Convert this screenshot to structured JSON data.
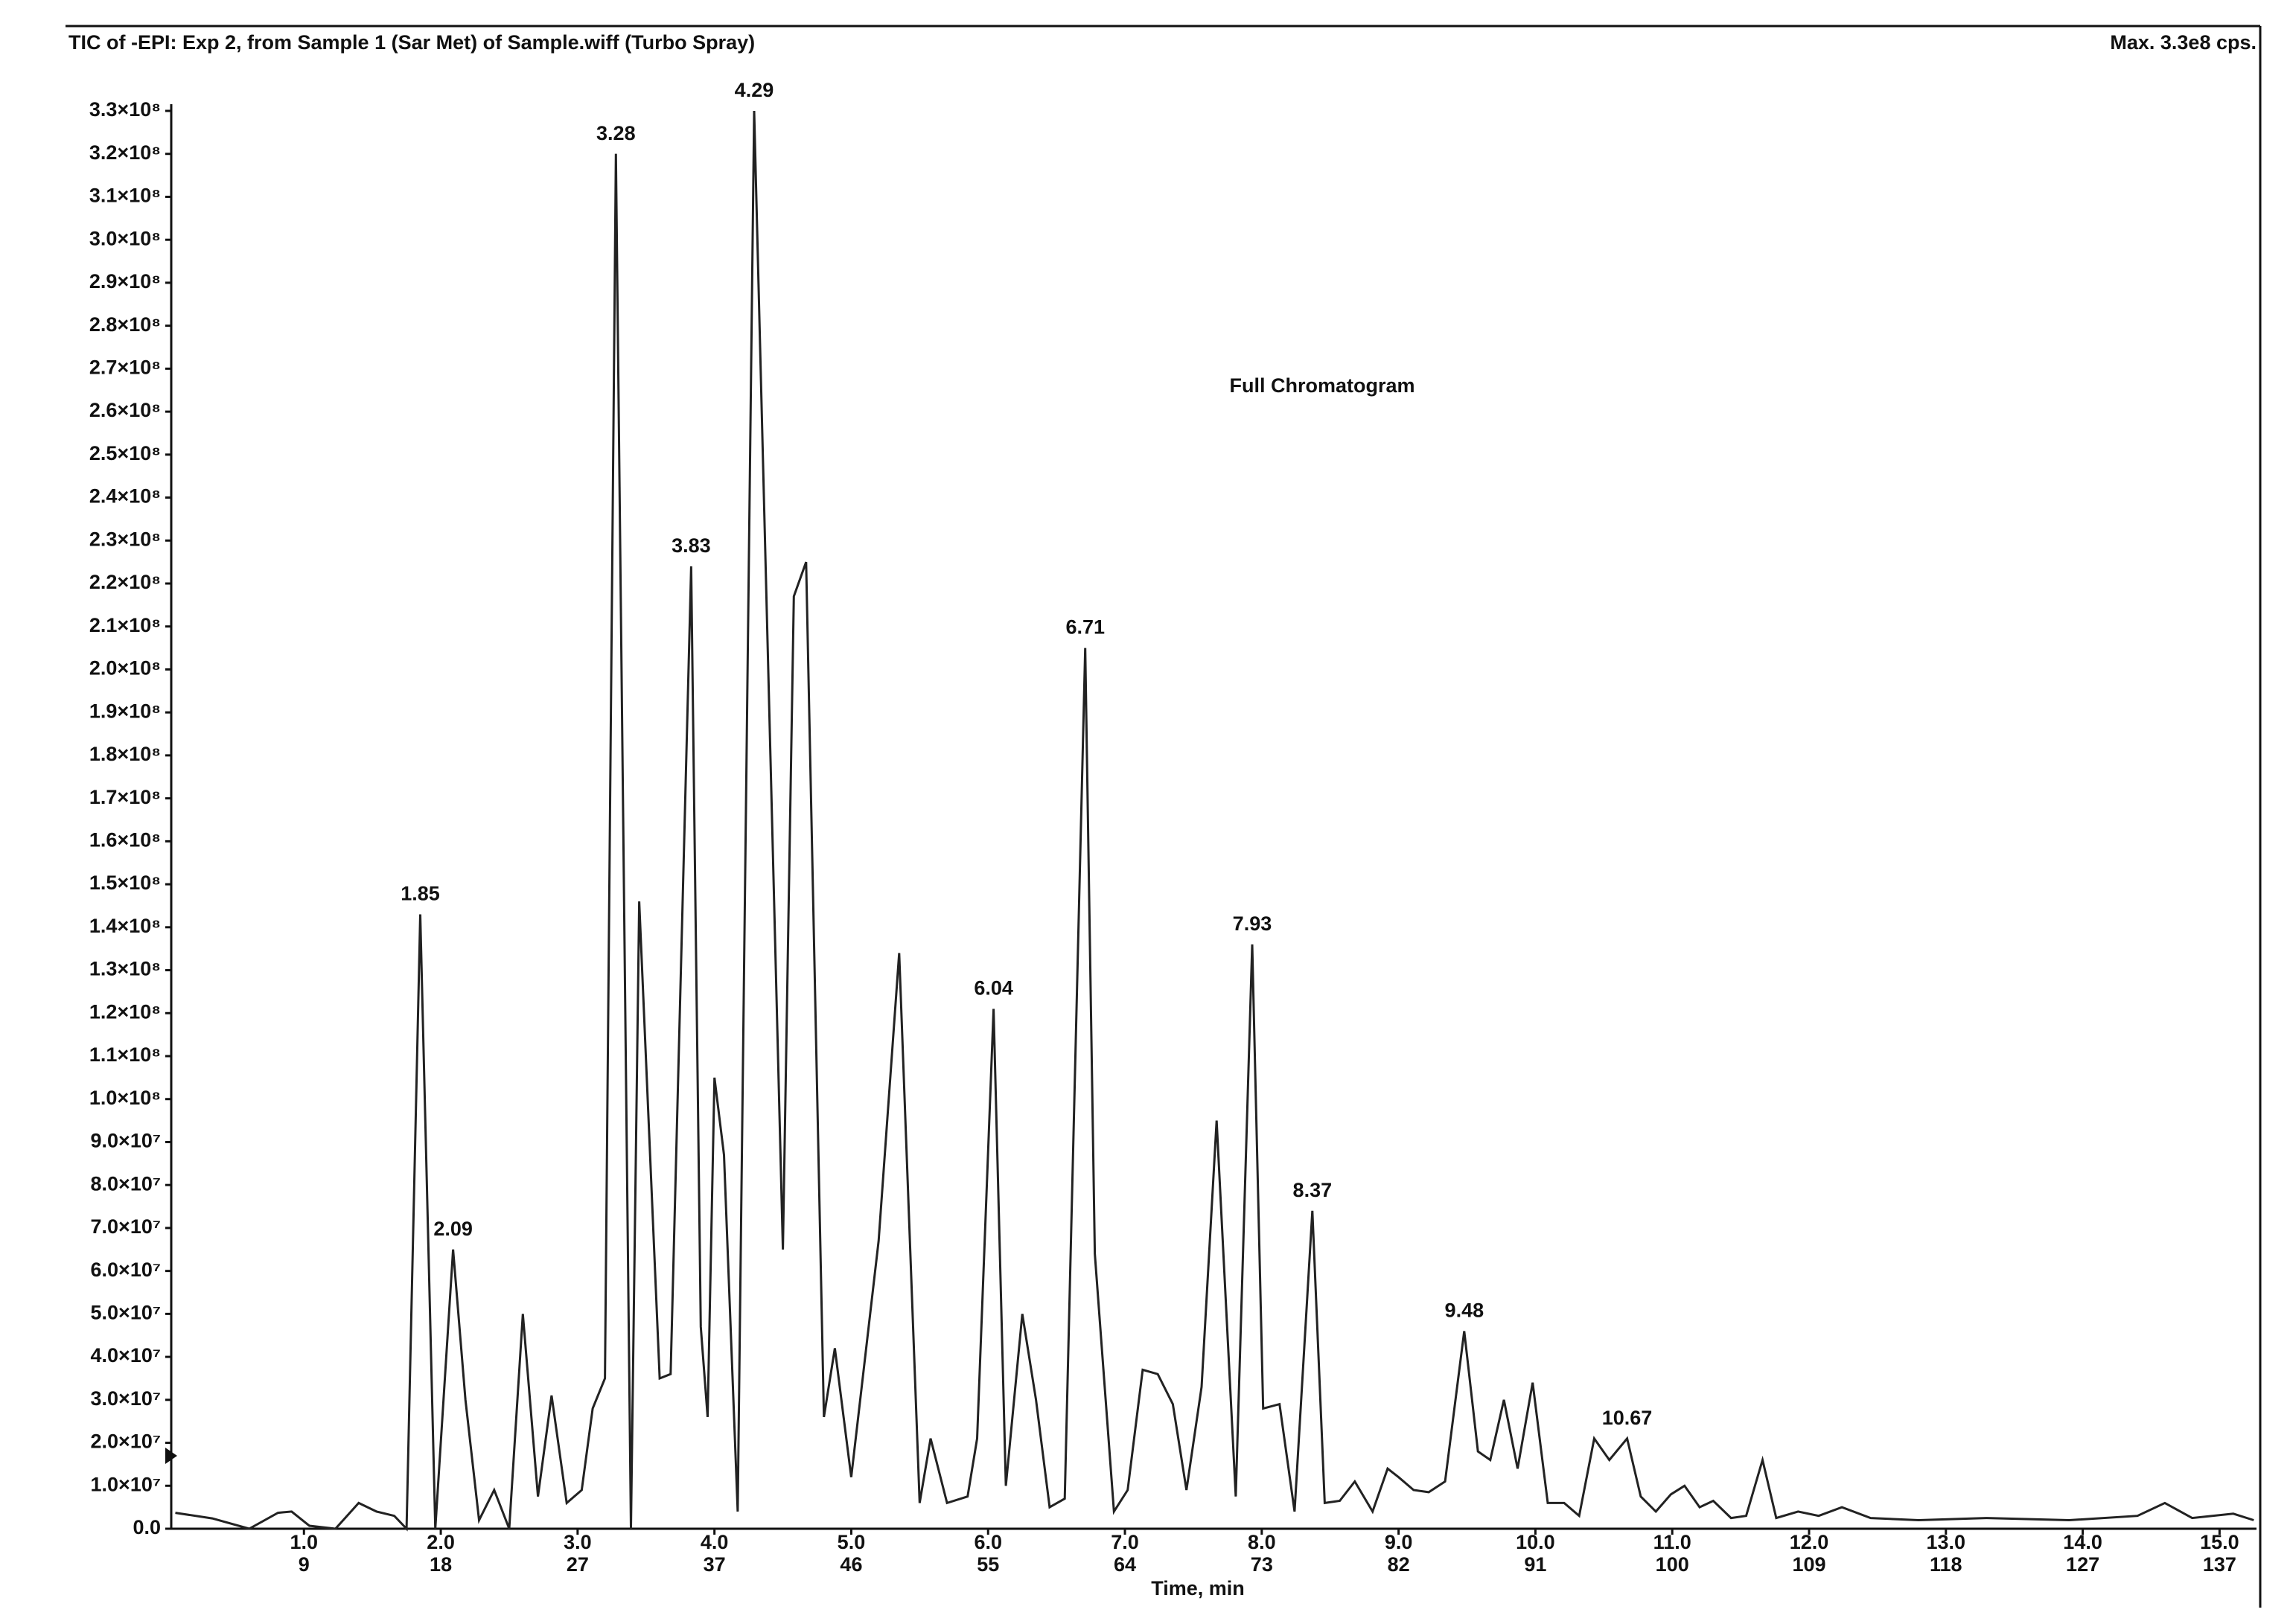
{
  "chart_data": {
    "type": "line",
    "title": "TIC of -EPI: Exp 2, from Sample 1 (Sar Met) of Sample.wiff (Turbo Spray)",
    "max_label": "Max. 3.3e8 cps.",
    "annotation": "Full Chromatogram",
    "x_label": "Time, min",
    "color": "#222222",
    "x": [
      0.06,
      0.33,
      0.6,
      0.81,
      0.91,
      1.04,
      1.23,
      1.4,
      1.53,
      1.66,
      1.75,
      1.85,
      1.96,
      2.09,
      2.18,
      2.28,
      2.39,
      2.5,
      2.6,
      2.71,
      2.81,
      2.92,
      3.03,
      3.11,
      3.2,
      3.28,
      3.39,
      3.45,
      3.6,
      3.68,
      3.83,
      3.9,
      3.95,
      4.0,
      4.07,
      4.17,
      4.29,
      4.5,
      4.58,
      4.67,
      4.8,
      4.88,
      5.0,
      5.2,
      5.35,
      5.5,
      5.58,
      5.7,
      5.85,
      5.92,
      6.04,
      6.13,
      6.25,
      6.35,
      6.45,
      6.56,
      6.71,
      6.78,
      6.92,
      7.02,
      7.13,
      7.24,
      7.35,
      7.45,
      7.56,
      7.67,
      7.81,
      7.93,
      8.01,
      8.13,
      8.24,
      8.37,
      8.46,
      8.57,
      8.68,
      8.81,
      8.92,
      9.0,
      9.11,
      9.22,
      9.34,
      9.48,
      9.58,
      9.67,
      9.77,
      9.87,
      9.98,
      10.09,
      10.21,
      10.32,
      10.43,
      10.54,
      10.67,
      10.77,
      10.88,
      10.99,
      11.09,
      11.2,
      11.3,
      11.43,
      11.54,
      11.66,
      11.76,
      11.92,
      12.07,
      12.24,
      12.45,
      12.8,
      13.3,
      13.9,
      14.4,
      14.6,
      14.8,
      15.1,
      15.25
    ],
    "values": [
      3700000,
      2400000,
      0,
      3700000,
      4000000,
      700000,
      0,
      6000000,
      4000000,
      3000000,
      0,
      143000000,
      0,
      65000000,
      30000000,
      2000000,
      9000000,
      0,
      50000000,
      7500000,
      31000000,
      6000000,
      9000000,
      28000000,
      35000000,
      320000000,
      0,
      146000000,
      35000000,
      36000000,
      224000000,
      47000000,
      26000000,
      105000000,
      87000000,
      4000000,
      330000000,
      65000000,
      217000000,
      225000000,
      26000000,
      42000000,
      12000000,
      67000000,
      134000000,
      6000000,
      21000000,
      6000000,
      7500000,
      21000000,
      121000000,
      10000000,
      50000000,
      30000000,
      5000000,
      7000000,
      205000000,
      64000000,
      4000000,
      9000000,
      37000000,
      36000000,
      29000000,
      9000000,
      33000000,
      95000000,
      7500000,
      136000000,
      28000000,
      29000000,
      4000000,
      74000000,
      6000000,
      6500000,
      11000000,
      4000000,
      14000000,
      12000000,
      9000000,
      8500000,
      11000000,
      46000000,
      18000000,
      16000000,
      30000000,
      14000000,
      34000000,
      6000000,
      6000000,
      3000000,
      21000000,
      16000000,
      21000000,
      7500000,
      4000000,
      8000000,
      10000000,
      5000000,
      6500000,
      2500000,
      3000000,
      16000000,
      2500000,
      4000000,
      3000000,
      5000000,
      2500000,
      2000000,
      2500000,
      2000000,
      3000000,
      6000000,
      2500000,
      3500000,
      2000000
    ],
    "peak_labels": [
      1.85,
      2.09,
      3.28,
      3.83,
      4.29,
      6.04,
      6.71,
      7.93,
      8.37,
      9.48,
      10.67
    ],
    "xlim": [
      0.03,
      15.27
    ],
    "xticks": [
      {
        "value": 1,
        "label": "1.0"
      },
      {
        "value": 2,
        "label": "2.0"
      },
      {
        "value": 3,
        "label": "3.0"
      },
      {
        "value": 4,
        "label": "4.0"
      },
      {
        "value": 5,
        "label": "5.0"
      },
      {
        "value": 6,
        "label": "6.0"
      },
      {
        "value": 7,
        "label": "7.0"
      },
      {
        "value": 8,
        "label": "8.0"
      },
      {
        "value": 9,
        "label": "9.0"
      },
      {
        "value": 10,
        "label": "10.0"
      },
      {
        "value": 11,
        "label": "11.0"
      },
      {
        "value": 12,
        "label": "12.0"
      },
      {
        "value": 13,
        "label": "13.0"
      },
      {
        "value": 14,
        "label": "14.0"
      },
      {
        "value": 15,
        "label": "15.0"
      }
    ],
    "xticks_scan": [
      9,
      18,
      27,
      37,
      46,
      55,
      64,
      73,
      82,
      91,
      100,
      109,
      118,
      127,
      137
    ],
    "ylim": [
      0,
      330000000
    ],
    "yticks": [
      {
        "value": 0,
        "label": "0.0"
      },
      {
        "value": 10000000,
        "label": "1.0×10⁷"
      },
      {
        "value": 20000000,
        "label": "2.0×10⁷"
      },
      {
        "value": 30000000,
        "label": "3.0×10⁷"
      },
      {
        "value": 40000000,
        "label": "4.0×10⁷"
      },
      {
        "value": 50000000,
        "label": "5.0×10⁷"
      },
      {
        "value": 60000000,
        "label": "6.0×10⁷"
      },
      {
        "value": 70000000,
        "label": "7.0×10⁷"
      },
      {
        "value": 80000000,
        "label": "8.0×10⁷"
      },
      {
        "value": 90000000,
        "label": "9.0×10⁷"
      },
      {
        "value": 100000000,
        "label": "1.0×10⁸"
      },
      {
        "value": 110000000,
        "label": "1.1×10⁸"
      },
      {
        "value": 120000000,
        "label": "1.2×10⁸"
      },
      {
        "value": 130000000,
        "label": "1.3×10⁸"
      },
      {
        "value": 140000000,
        "label": "1.4×10⁸"
      },
      {
        "value": 150000000,
        "label": "1.5×10⁸"
      },
      {
        "value": 160000000,
        "label": "1.6×10⁸"
      },
      {
        "value": 170000000,
        "label": "1.7×10⁸"
      },
      {
        "value": 180000000,
        "label": "1.8×10⁸"
      },
      {
        "value": 190000000,
        "label": "1.9×10⁸"
      },
      {
        "value": 200000000,
        "label": "2.0×10⁸"
      },
      {
        "value": 210000000,
        "label": "2.1×10⁸"
      },
      {
        "value": 220000000,
        "label": "2.2×10⁸"
      },
      {
        "value": 230000000,
        "label": "2.3×10⁸"
      },
      {
        "value": 240000000,
        "label": "2.4×10⁸"
      },
      {
        "value": 250000000,
        "label": "2.5×10⁸"
      },
      {
        "value": 260000000,
        "label": "2.6×10⁸"
      },
      {
        "value": 270000000,
        "label": "2.7×10⁸"
      },
      {
        "value": 280000000,
        "label": "2.8×10⁸"
      },
      {
        "value": 290000000,
        "label": "2.9×10⁸"
      },
      {
        "value": 300000000,
        "label": "3.0×10⁸"
      },
      {
        "value": 310000000,
        "label": "3.1×10⁸"
      },
      {
        "value": 320000000,
        "label": "3.2×10⁸"
      },
      {
        "value": 330000000,
        "label": "3.3×10⁸"
      }
    ],
    "grid": false
  }
}
